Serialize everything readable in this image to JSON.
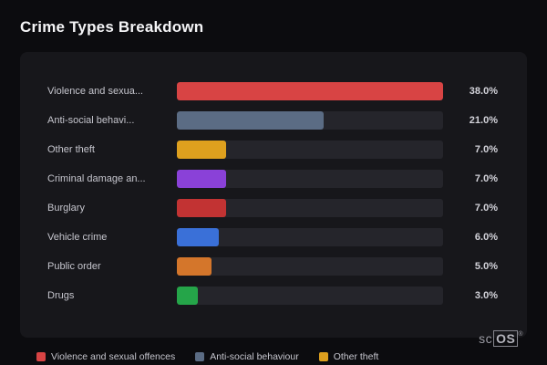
{
  "page": {
    "title": "Crime Types Breakdown",
    "brand_prefix": "sc",
    "brand_suffix": "OS",
    "brand_reg": "®"
  },
  "colors": {
    "background": "#0c0c0f",
    "card": "#17171b",
    "bar_track": "#25252b"
  },
  "chart_data": {
    "type": "bar",
    "orientation": "horizontal",
    "title": "Crime Types Breakdown",
    "categories": [
      "Violence and sexua...",
      "Anti-social behavi...",
      "Other theft",
      "Criminal damage an...",
      "Burglary",
      "Vehicle crime",
      "Public order",
      "Drugs"
    ],
    "values": [
      38.0,
      21.0,
      7.0,
      7.0,
      7.0,
      6.0,
      5.0,
      3.0
    ],
    "value_labels": [
      "38.0%",
      "21.0%",
      "7.0%",
      "7.0%",
      "7.0%",
      "6.0%",
      "5.0%",
      "3.0%"
    ],
    "bar_colors": [
      "#d84444",
      "#5b6c84",
      "#dea01e",
      "#8a41d8",
      "#c23333",
      "#3a70d8",
      "#d4762b",
      "#25a549"
    ],
    "xlim": [
      0,
      38
    ],
    "grid": false,
    "legend_position": "bottom",
    "legend": [
      {
        "label": "Violence and sexual offences",
        "color": "#d84444"
      },
      {
        "label": "Anti-social behaviour",
        "color": "#5b6c84"
      },
      {
        "label": "Other theft",
        "color": "#dea01e"
      }
    ]
  }
}
